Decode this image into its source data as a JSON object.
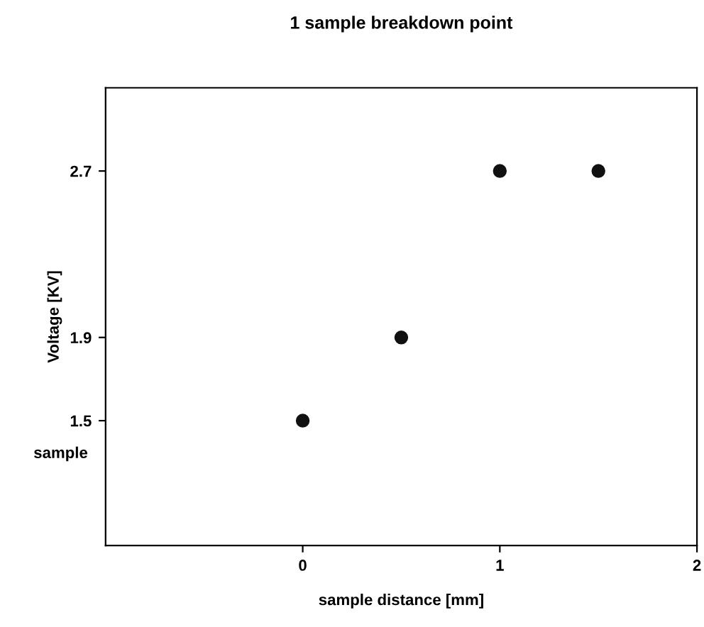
{
  "chart_data": {
    "type": "scatter",
    "title": "1 sample breakdown point",
    "xlabel": "sample distance [mm]",
    "ylabel": "Voltage [KV]",
    "x": [
      0,
      0.5,
      1,
      1.5
    ],
    "values": [
      1.5,
      1.9,
      2.7,
      2.7
    ],
    "color": "#111111",
    "marker": "circle",
    "xlim": [
      -1,
      2
    ],
    "xticks": [
      0,
      1,
      2
    ],
    "ylim": [
      0.9,
      3.1
    ],
    "yticks": [
      1.5,
      1.9,
      2.7
    ],
    "annotations": [
      "sample"
    ],
    "grid": false,
    "legend": false
  }
}
